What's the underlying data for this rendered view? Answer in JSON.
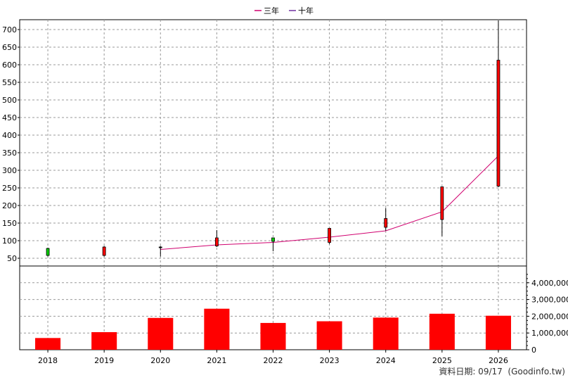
{
  "chart_data": {
    "type": "candlestick+line+bar",
    "legend": [
      {
        "name": "三年",
        "color": "#d0006f"
      },
      {
        "name": "十年",
        "color": "#7030a0"
      }
    ],
    "x": [
      "2018",
      "2019",
      "2020",
      "2021",
      "2022",
      "2023",
      "2024",
      "2025",
      "2026"
    ],
    "price_axis": {
      "ticks": [
        50,
        100,
        150,
        200,
        250,
        300,
        350,
        400,
        450,
        500,
        550,
        600,
        650,
        700
      ],
      "ylim": [
        28,
        728
      ]
    },
    "volume_axis": {
      "ticks": [
        "0",
        "1,000,000",
        "2,000,000",
        "3,000,000",
        "4,000,000"
      ],
      "tick_values": [
        0,
        1000000,
        2000000,
        3000000,
        4000000
      ],
      "ylim": [
        0,
        5000000
      ]
    },
    "candles": [
      {
        "x": "2018",
        "open": 58,
        "high": 80,
        "low": 55,
        "close": 78,
        "color": "green"
      },
      {
        "x": "2019",
        "open": 82,
        "high": 85,
        "low": 55,
        "close": 58,
        "color": "red"
      },
      {
        "x": "2020",
        "open": 82,
        "high": 85,
        "low": 55,
        "close": 82,
        "color": "black"
      },
      {
        "x": "2021",
        "open": 85,
        "high": 130,
        "low": 82,
        "close": 108,
        "color": "red"
      },
      {
        "x": "2022",
        "open": 98,
        "high": 108,
        "low": 70,
        "close": 108,
        "color": "green"
      },
      {
        "x": "2023",
        "open": 95,
        "high": 135,
        "low": 90,
        "close": 135,
        "color": "red"
      },
      {
        "x": "2024",
        "open": 138,
        "high": 193,
        "low": 128,
        "close": 163,
        "color": "red"
      },
      {
        "x": "2025",
        "open": 160,
        "high": 253,
        "low": 113,
        "close": 253,
        "color": "red"
      },
      {
        "x": "2026",
        "open": 255,
        "high": 726,
        "low": 252,
        "close": 613,
        "color": "red"
      }
    ],
    "line_series": {
      "name": "三年",
      "x": [
        "2020",
        "2021",
        "2022",
        "2023",
        "2024",
        "2025",
        "2026"
      ],
      "values": [
        75,
        88,
        95,
        110,
        128,
        182,
        341
      ]
    },
    "volume": [
      700000,
      1050000,
      1900000,
      2450000,
      1600000,
      1700000,
      1920000,
      2150000,
      2030000
    ],
    "grid": true
  },
  "footer": {
    "text": "資料日期: 09/17  (Goodinfo.tw)"
  }
}
